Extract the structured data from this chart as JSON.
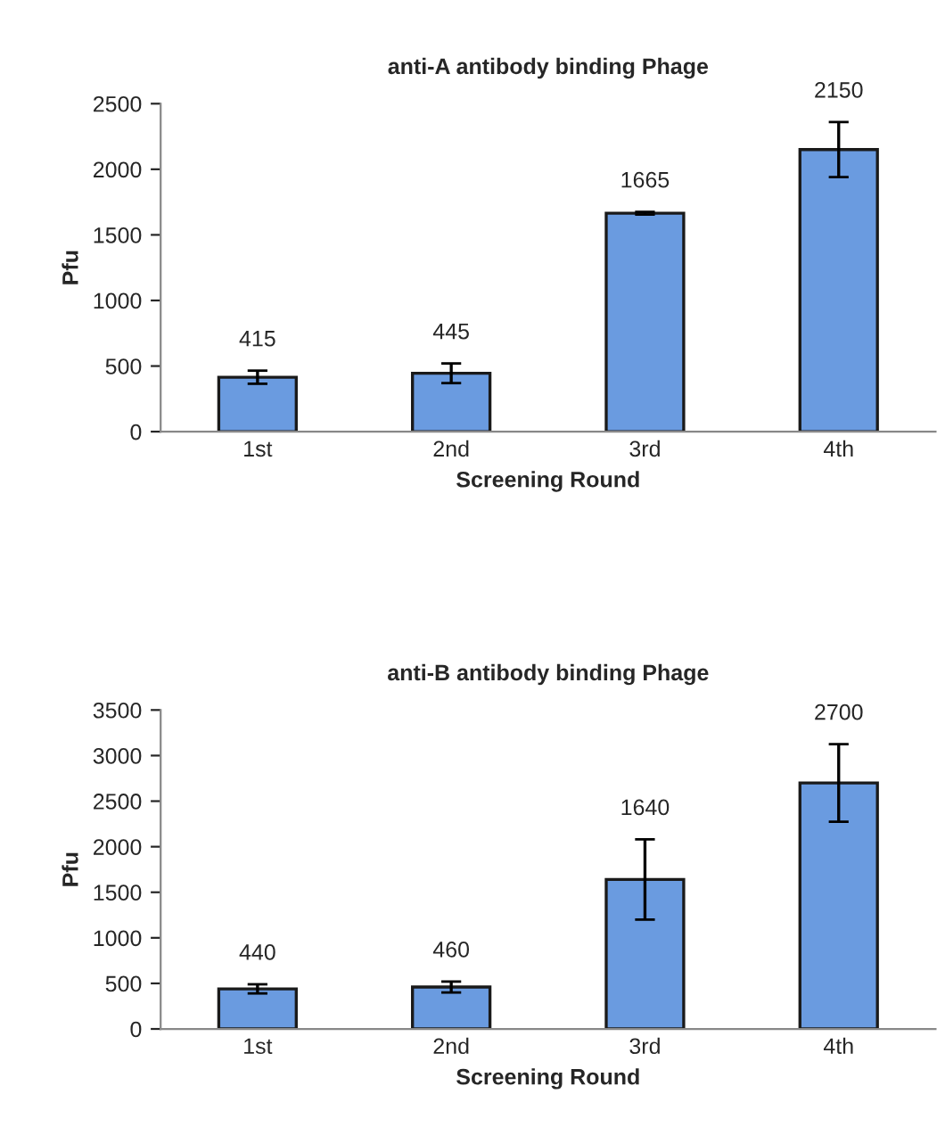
{
  "chart_data": [
    {
      "type": "bar",
      "title": "anti-A antibody binding Phage",
      "xlabel": "Screening Round",
      "ylabel": "Pfu",
      "categories": [
        "1st",
        "2nd",
        "3rd",
        "4th"
      ],
      "values": [
        415,
        445,
        1665,
        2150
      ],
      "errors": [
        50,
        75,
        10,
        210
      ],
      "color": "#6a9be0",
      "ylim": [
        0,
        2500
      ],
      "yticks": [
        0,
        500,
        1000,
        1500,
        2000,
        2500
      ],
      "data_labels": true,
      "grid": false,
      "legend": false
    },
    {
      "type": "bar",
      "title": "anti-B antibody binding Phage",
      "xlabel": "Screening Round",
      "ylabel": "Pfu",
      "categories": [
        "1st",
        "2nd",
        "3rd",
        "4th"
      ],
      "values": [
        440,
        460,
        1640,
        2700
      ],
      "errors": [
        50,
        60,
        440,
        425
      ],
      "color": "#6a9be0",
      "ylim": [
        0,
        3500
      ],
      "yticks": [
        0,
        500,
        1000,
        1500,
        2000,
        2500,
        3000,
        3500
      ],
      "data_labels": true,
      "grid": false,
      "legend": false
    }
  ]
}
